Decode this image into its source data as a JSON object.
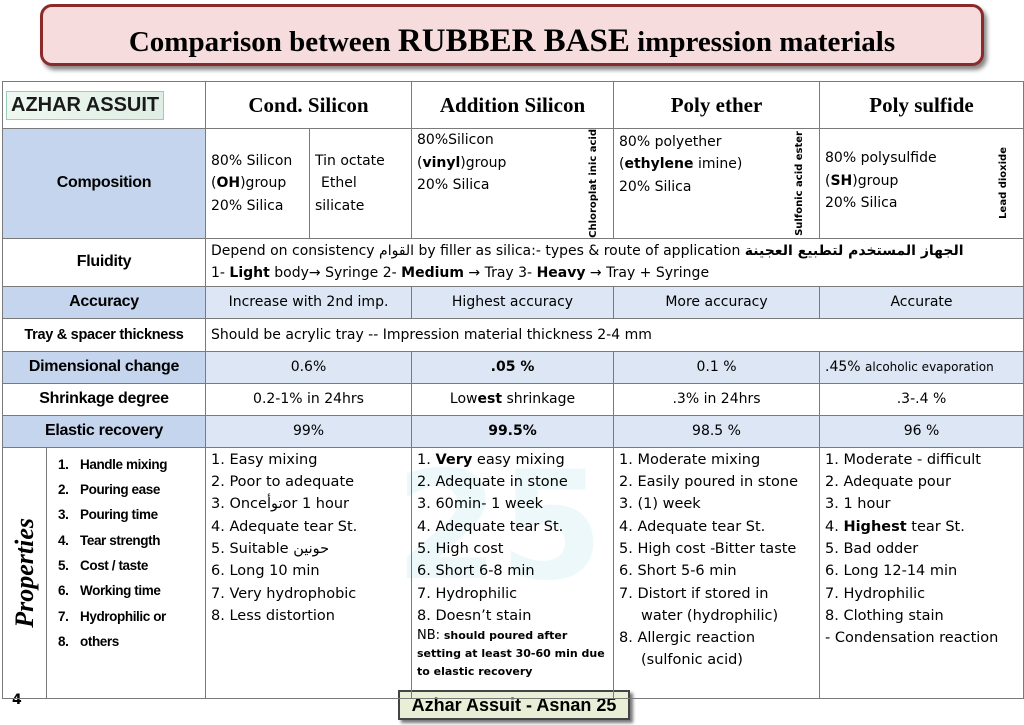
{
  "title": {
    "part1": "Comparison between ",
    "part2": "RUBBER BASE",
    "part3": " impression materials"
  },
  "logo": {
    "text": "AZHAR ASSUIT"
  },
  "columns": [
    "Cond. Silicon",
    "Addition Silicon",
    "Poly ether",
    "Poly sulfide"
  ],
  "composition": {
    "label": "Composition",
    "cond": {
      "base": [
        "80% Silicon",
        "(OH)group",
        "20% Silica"
      ],
      "cat": [
        "Tin octate",
        "Ethel",
        "silicate"
      ]
    },
    "addition": {
      "base": [
        "80%Silicon",
        "(vinyl)group",
        "20% Silica"
      ],
      "cat": "Chloroplat inic acid"
    },
    "polyether": {
      "base": [
        "80% polyether",
        "(ethylene imine)",
        "20% Silica"
      ],
      "cat": "Sulfonic acid ester"
    },
    "polysulfide": {
      "base": [
        "80% polysulfide",
        "(SH)group",
        "20% Silica"
      ],
      "cat": "Lead dioxide"
    }
  },
  "fluidity": {
    "label": "Fluidity",
    "line1_a": "Depend on consistency",
    "line1_ar1": "القوام",
    "line1_b": "by filler as silica:- types & route of application",
    "line1_ar2": "الجهاز المستخدم لتطبيع العجينة",
    "line2": {
      "n1": "1- ",
      "b1": "Light",
      "t1": " body→ Syringe  2- ",
      "b2": "Medium",
      "t2": "  → Tray  3- ",
      "b3": "Heavy",
      "t3": " → Tray + Syringe"
    }
  },
  "accuracy": {
    "label": "Accuracy",
    "values": [
      "Increase with 2nd imp.",
      "Highest accuracy",
      "More accuracy",
      "Accurate"
    ]
  },
  "tray": {
    "label": "Tray & spacer thickness",
    "text": "Should be acrylic tray   -- Impression material thickness 2-4 mm"
  },
  "dimensional": {
    "label": "Dimensional change",
    "values": [
      "0.6%",
      ".05 %",
      "0.1 %",
      ".45%"
    ],
    "note": "alcoholic evaporation"
  },
  "shrinkage": {
    "label": "Shrinkage degree",
    "values": [
      "0.2-1% in 24hrs",
      "Lowest shrinkage",
      ".3% in 24hrs",
      ".3-.4 %"
    ]
  },
  "elastic": {
    "label": "Elastic recovery",
    "values": [
      "99%",
      "99.5%",
      "98.5 %",
      "96 %"
    ]
  },
  "properties": {
    "label": "Properties",
    "items": [
      "Handle mixing",
      "Pouring ease",
      "Pouring time",
      "Tear strength",
      "Cost / taste",
      "Working time",
      "Hydrophilic or",
      "others"
    ],
    "cond": [
      "1.  Easy mixing",
      "2.  Poor to adequate",
      "3.   Onceتوأor 1 hour",
      "4.  Adequate tear St.",
      "5.  Suitable حونين",
      "6.  Long 10 min",
      "7.  Very hydrophobic",
      "8.  Less distortion"
    ],
    "addition": [
      "1.",
      "Very",
      " easy  mixing",
      "2.   Adequate in stone",
      "3.  60min- 1 week",
      "4.  Adequate tear St.",
      "5.  High cost",
      "6.  Short 6-8 min",
      "7.  Hydrophilic",
      "8.  Doesn’t stain"
    ],
    "addition_nb": [
      "NB:",
      "should poured after",
      "setting at least 30-60 min due",
      "to elastic recovery"
    ],
    "polyether": [
      "1.  Moderate  mixing",
      "2.  Easily poured in stone",
      "3.   (1) week",
      "4.  Adequate tear St.",
      "5.  High cost -Bitter taste",
      "6.  Short  5-6 min",
      "7.  Distort if stored in",
      "water (hydrophilic)",
      "8.  Allergic reaction",
      "(sulfonic acid)"
    ],
    "polysulfide": [
      "1.  Moderate - difficult",
      "2.  Adequate pour",
      "3.  1 hour",
      "4.",
      "Highest",
      " tear St.",
      "5.   Bad odder",
      "6.  Long  12-14 min",
      "7.  Hydrophilic",
      "8.  Clothing stain",
      "-    Condensation reaction"
    ]
  },
  "page_number": "4",
  "footer": "Azhar Assuit - Asnan 25"
}
